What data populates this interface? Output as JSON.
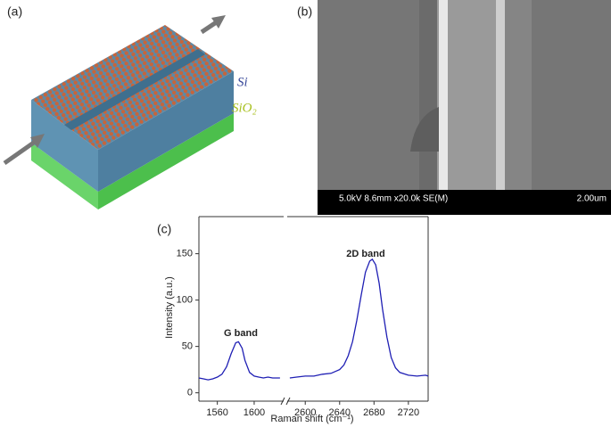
{
  "panels": {
    "a": {
      "label": "(a)",
      "layer_top": "Si",
      "layer_bottom": "SiO₂"
    },
    "b": {
      "label": "(b)",
      "info": "5.0kV 8.6mm x20.0k SE(M)",
      "scale": "2.00um"
    },
    "c": {
      "label": "(c)"
    }
  },
  "chart_data": {
    "type": "line",
    "xlabel": "Raman shift (cm⁻¹)",
    "ylabel": "Intensity (a.u.)",
    "ylim": [
      -9,
      190
    ],
    "yticks": [
      0,
      50,
      100,
      150
    ],
    "x_segments": [
      {
        "xlim": [
          1540,
          1632
        ],
        "xticks": [
          1560,
          1600
        ]
      },
      {
        "xlim": [
          2579,
          2743
        ],
        "xticks": [
          2600,
          2640,
          2680,
          2720
        ]
      }
    ],
    "annotations": [
      "G band",
      "2D band"
    ],
    "series": [
      {
        "color": "#1f1fb4",
        "x": [
          1540,
          1545,
          1550,
          1555,
          1560,
          1565,
          1570,
          1575,
          1580,
          1583,
          1587,
          1590,
          1595,
          1600,
          1605,
          1610,
          1615,
          1620,
          1628,
          null,
          2582,
          2590,
          2600,
          2610,
          2620,
          2630,
          2640,
          2645,
          2650,
          2655,
          2660,
          2665,
          2670,
          2675,
          2678,
          2682,
          2686,
          2690,
          2695,
          2700,
          2705,
          2710,
          2720,
          2730,
          2740,
          2743
        ],
        "values": [
          16,
          15,
          14,
          15,
          17,
          20,
          28,
          42,
          54,
          55,
          48,
          35,
          22,
          18,
          17,
          16,
          17,
          16,
          16,
          null,
          16,
          17,
          18,
          18,
          20,
          21,
          25,
          30,
          40,
          55,
          78,
          105,
          130,
          142,
          144,
          138,
          118,
          90,
          60,
          38,
          27,
          22,
          19,
          18,
          19,
          18
        ]
      }
    ]
  }
}
